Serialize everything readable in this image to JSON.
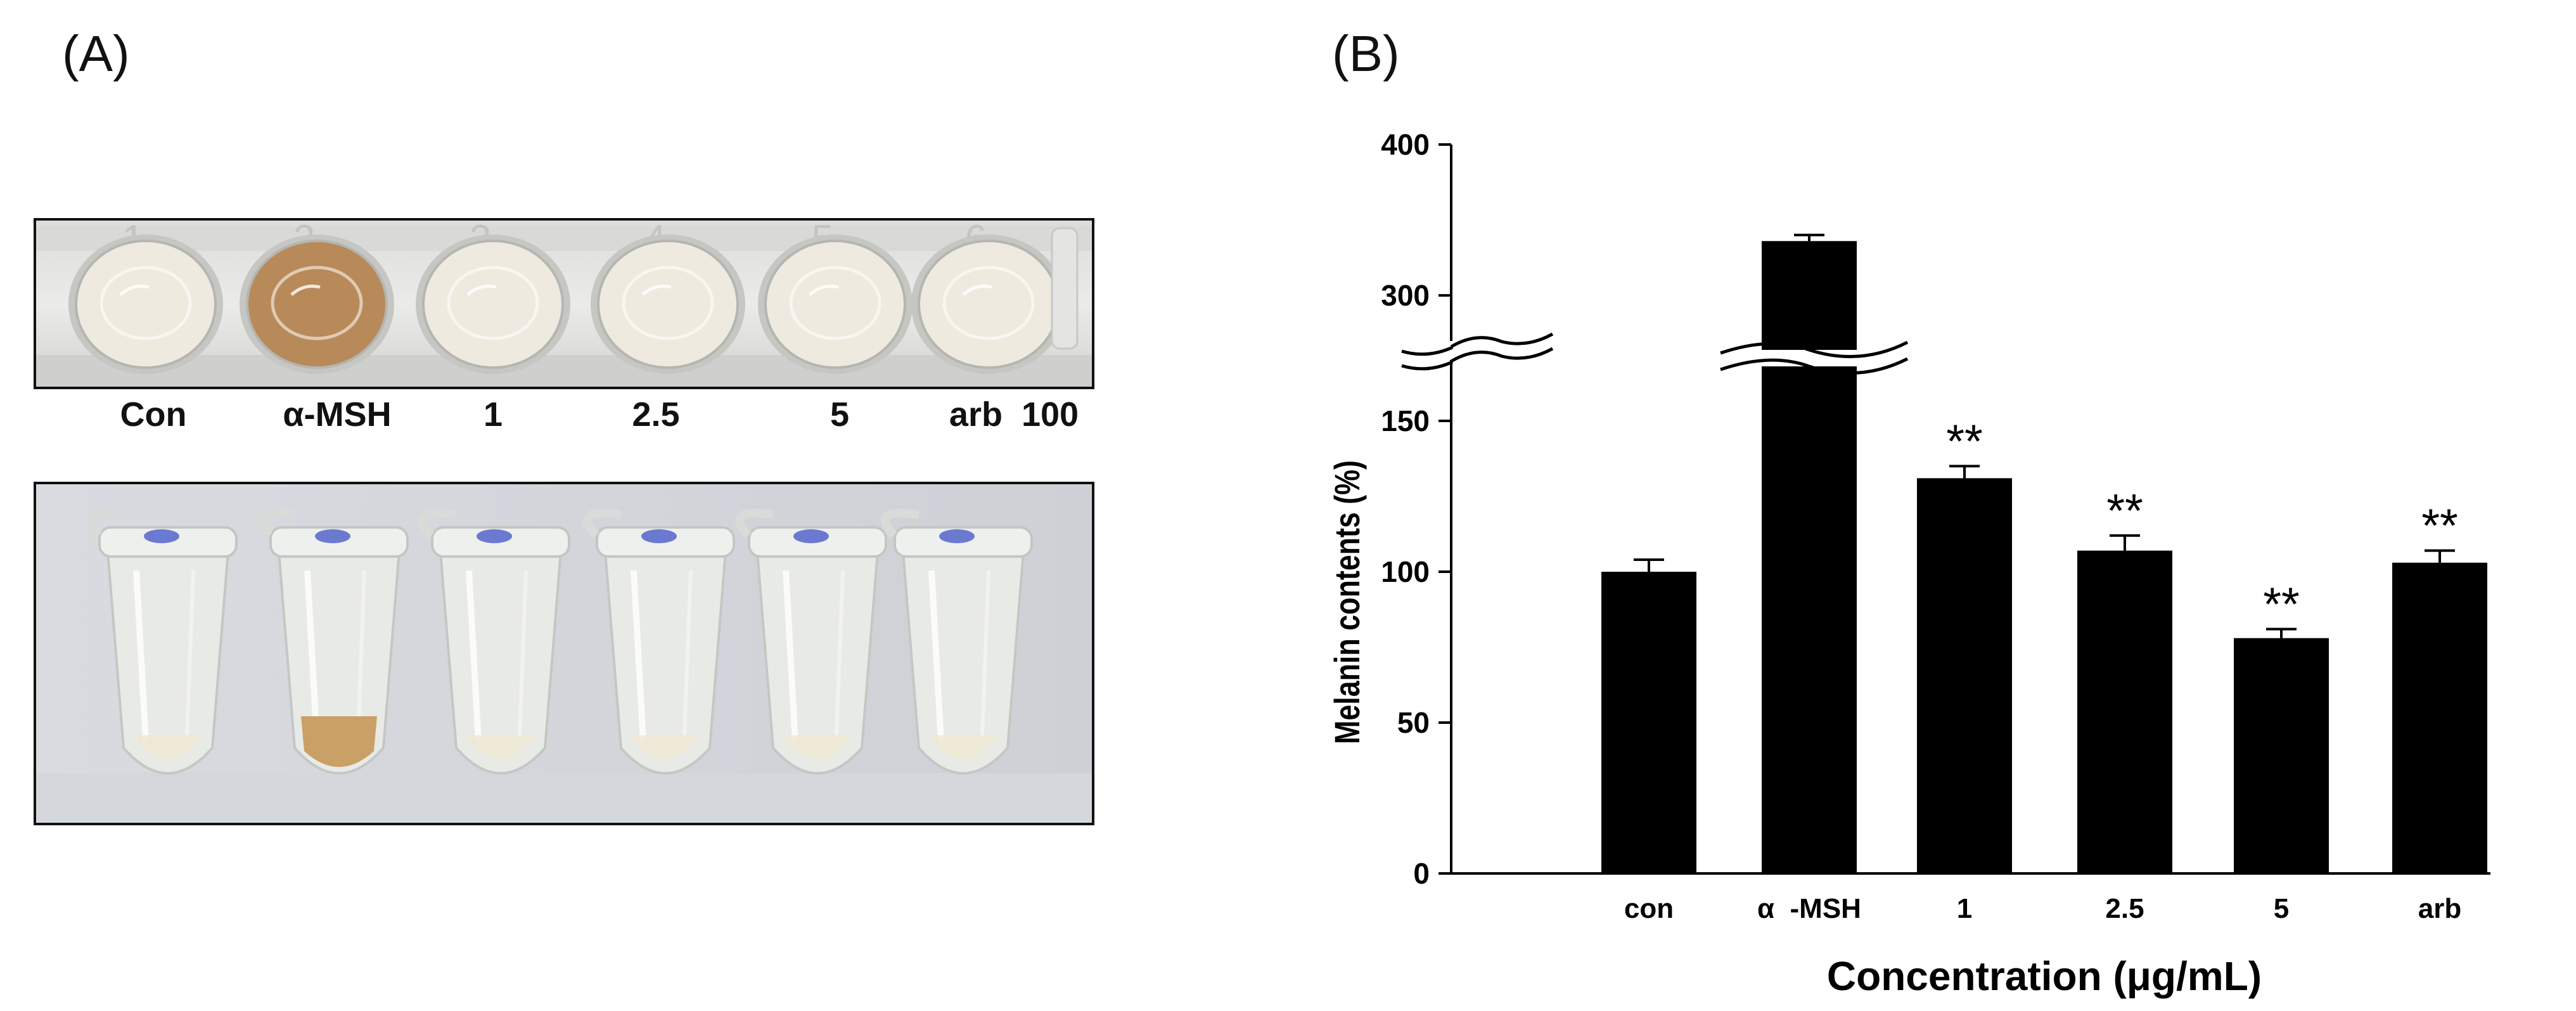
{
  "panel_a": {
    "label": "(A)",
    "plate_numbers": [
      "1",
      "2",
      "3",
      "4",
      "5",
      "6"
    ],
    "well_labels": [
      "Con",
      "α-MSH",
      "1",
      "2.5",
      "5",
      "arb  100"
    ],
    "colors": {
      "clear_well": "#eeeae0",
      "msh_well": "#b88a5a",
      "tube_clear": "#e9ebe6",
      "tube_msh": "#c9a066",
      "cap_mark": "#4a5bc8"
    }
  },
  "panel_b": {
    "label": "(B)"
  },
  "chart_data": {
    "type": "bar",
    "categories": [
      "con",
      "α  -MSH",
      "1",
      "2.5",
      "5",
      "arb"
    ],
    "values": [
      100,
      336,
      131,
      107,
      78,
      103
    ],
    "errors": [
      4,
      4,
      4,
      5,
      3,
      4
    ],
    "significance": [
      "",
      "",
      "**",
      "**",
      "**",
      "**"
    ],
    "xlabel": "Concentration (μg/mL)",
    "ylabel": "Melanin contents (%)",
    "yticks": [
      0,
      50,
      100,
      150,
      300,
      400
    ],
    "axis_break": {
      "lower_segment": [
        0,
        175
      ],
      "upper_segment": [
        275,
        400
      ]
    },
    "bar_color": "#000000"
  }
}
